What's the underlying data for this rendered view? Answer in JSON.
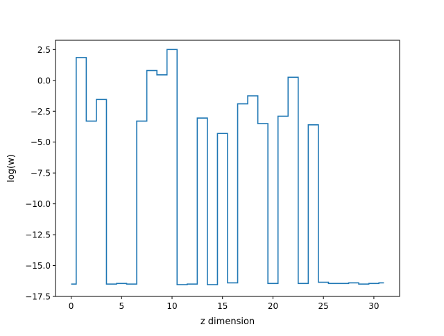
{
  "chart_data": {
    "type": "line",
    "drawstyle": "steps-mid",
    "title": "",
    "xlabel": "z dimension",
    "ylabel": "log(w)",
    "xlim": [
      -1.55,
      32.55
    ],
    "ylim": [
      -17.5,
      3.25
    ],
    "xticks": [
      0,
      5,
      10,
      15,
      20,
      25,
      30
    ],
    "xtick_labels": [
      "0",
      "5",
      "10",
      "15",
      "20",
      "25",
      "30"
    ],
    "yticks": [
      2.5,
      0.0,
      -2.5,
      -5.0,
      -7.5,
      -10.0,
      -12.5,
      -15.0,
      -17.5
    ],
    "ytick_labels": [
      "2.5",
      "0.0",
      "−2.5",
      "−5.0",
      "−7.5",
      "−10.0",
      "−12.5",
      "−15.0",
      "−17.5"
    ],
    "grid": false,
    "legend": "none",
    "series": [
      {
        "color": "#1f77b4",
        "x": [
          0,
          1,
          2,
          3,
          4,
          5,
          6,
          7,
          8,
          9,
          10,
          11,
          12,
          13,
          14,
          15,
          16,
          17,
          18,
          19,
          20,
          21,
          22,
          23,
          24,
          25,
          26,
          27,
          28,
          29,
          30,
          31
        ],
        "y": [
          -16.5,
          1.85,
          -3.3,
          -1.55,
          -16.5,
          -16.45,
          -16.5,
          -3.3,
          0.8,
          0.45,
          2.5,
          -16.55,
          -16.5,
          -3.05,
          -16.55,
          -4.3,
          -16.4,
          -1.9,
          -1.25,
          -3.5,
          -16.45,
          -2.9,
          0.25,
          -16.45,
          -3.6,
          -16.35,
          -16.45,
          -16.45,
          -16.4,
          -16.5,
          -16.45,
          -16.4
        ]
      }
    ]
  }
}
